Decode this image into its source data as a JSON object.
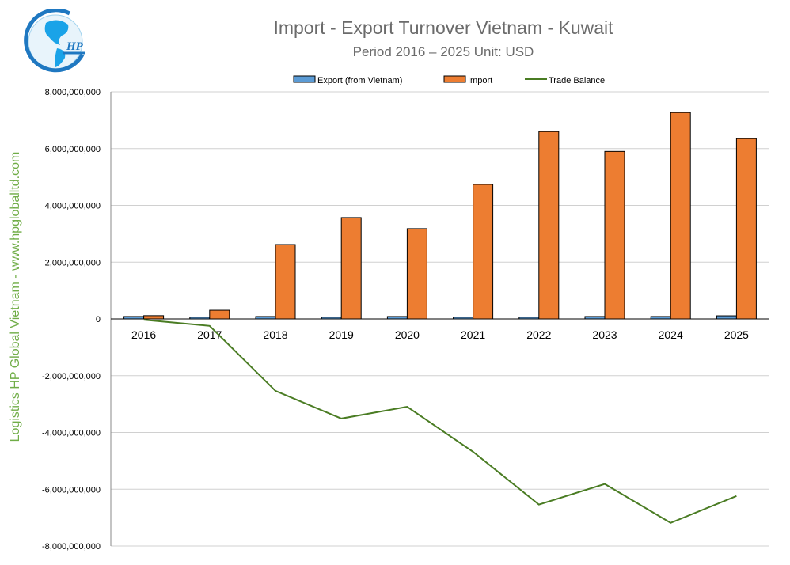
{
  "chart_data": {
    "type": "bar",
    "title": "Import - Export Turnover Vietnam - Kuwait",
    "subtitle": "Period 2016 – 2025  Unit: USD",
    "categories": [
      "2016",
      "2017",
      "2018",
      "2019",
      "2020",
      "2021",
      "2022",
      "2023",
      "2024",
      "2025"
    ],
    "series": [
      {
        "name": "Export (from Vietnam)",
        "type": "bar",
        "color": "#5b9bd5",
        "values": [
          85000000,
          60000000,
          85000000,
          60000000,
          85000000,
          60000000,
          60000000,
          85000000,
          85000000,
          110000000
        ]
      },
      {
        "name": "Import",
        "type": "bar",
        "color": "#ed7d31",
        "values": [
          115000000,
          305000000,
          2620000000,
          3570000000,
          3180000000,
          4740000000,
          6600000000,
          5900000000,
          7270000000,
          6350000000
        ]
      },
      {
        "name": "Trade Balance",
        "type": "line",
        "color": "#4a7c23",
        "values": [
          -30000000,
          -245000000,
          -2535000000,
          -3510000000,
          -3095000000,
          -4680000000,
          -6540000000,
          -5815000000,
          -7185000000,
          -6240000000
        ]
      }
    ],
    "ylim": [
      -8000000000,
      8000000000
    ],
    "yticks": [
      "8,000,000,000",
      "6,000,000,000",
      "4,000,000,000",
      "2,000,000,000",
      "0",
      "-2,000,000,000",
      "-4,000,000,000",
      "-6,000,000,000",
      "-8,000,000,000"
    ],
    "ytick_values": [
      8000000000,
      6000000000,
      4000000000,
      2000000000,
      0,
      -2000000000,
      -4000000000,
      -6000000000,
      -8000000000
    ],
    "grid": true,
    "legend": "top"
  },
  "watermark": "Logistics HP Global Vietnam - www.hpgloballtd.com",
  "logo_text": "HP"
}
